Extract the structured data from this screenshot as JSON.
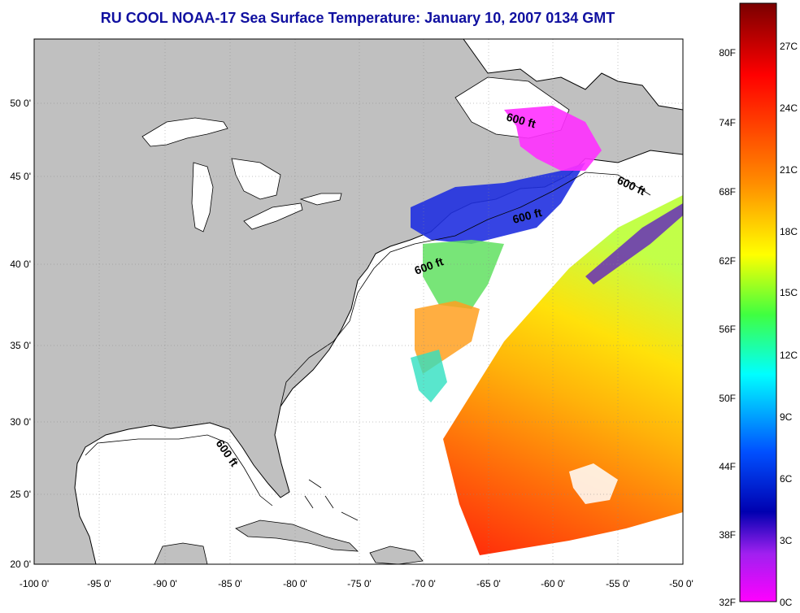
{
  "title": "RU COOL  NOAA-17  Sea Surface Temperature:  January 10, 2007 0134 GMT",
  "map": {
    "lon_labels": [
      "-100 0'",
      "-95 0'",
      "-90 0'",
      "-85 0'",
      "-80 0'",
      "-75 0'",
      "-70 0'",
      "-65 0'",
      "-60 0'",
      "-55 0'",
      "-50 0'"
    ],
    "lat_labels": [
      "50 0'",
      "45 0'",
      "40 0'",
      "35 0'",
      "30 0'",
      "25 0'",
      "20 0'"
    ],
    "contour_labels": [
      "600 ft",
      "600 ft",
      "600 ft",
      "600 ft",
      "600 ft"
    ],
    "land_color": "#c0c0c0",
    "ocean_color": "#ffffff"
  },
  "colorbar": {
    "fahrenheit_labels": [
      "80F",
      "74F",
      "68F",
      "62F",
      "56F",
      "50F",
      "44F",
      "38F",
      "32F"
    ],
    "celsius_labels": [
      "27C",
      "24C",
      "21C",
      "18C",
      "15C",
      "12C",
      "9C",
      "6C",
      "3C",
      "0C"
    ],
    "gradient_colors": [
      "#8b0000",
      "#ff0000",
      "#ff8000",
      "#ffff00",
      "#00ff00",
      "#00ffff",
      "#0060ff",
      "#0000c0",
      "#a000ff",
      "#ff00ff"
    ]
  }
}
